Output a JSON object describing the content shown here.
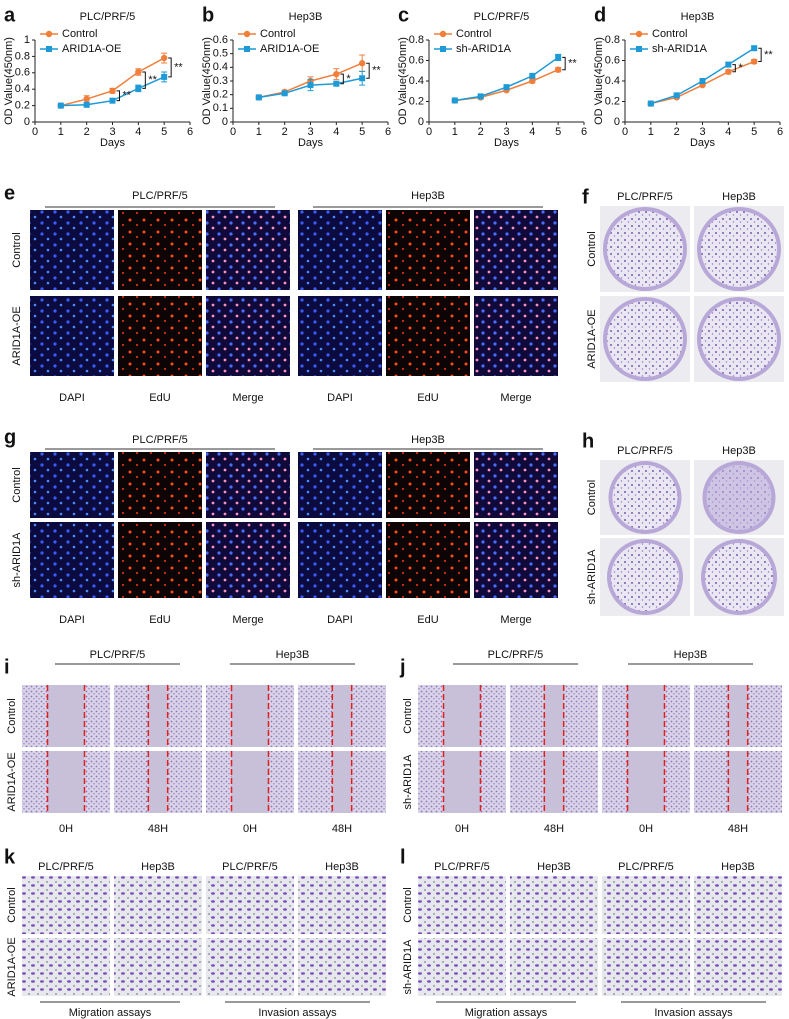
{
  "chart_data": [
    {
      "type": "line",
      "label": "a",
      "title": "PLC/PRF/5",
      "xlabel": "Days",
      "ylabel": "OD Value(450nm)",
      "x": [
        1,
        2,
        3,
        4,
        5
      ],
      "xlim": [
        0,
        6
      ],
      "xticks": [
        0,
        1,
        2,
        3,
        4,
        5,
        6
      ],
      "ylim": [
        0,
        1
      ],
      "yticks": [
        0,
        0.2,
        0.4,
        0.6,
        0.8,
        1
      ],
      "series": [
        {
          "name": "Control",
          "color": "#f07f3c",
          "values": [
            0.2,
            0.28,
            0.38,
            0.61,
            0.78
          ],
          "errors": [
            0.01,
            0.04,
            0.03,
            0.04,
            0.06
          ]
        },
        {
          "name": "ARID1A-OE",
          "color": "#1e9ad6",
          "values": [
            0.2,
            0.21,
            0.26,
            0.41,
            0.55
          ],
          "errors": [
            0.01,
            0.01,
            0.02,
            0.04,
            0.06
          ]
        }
      ],
      "significance": [
        null,
        null,
        "**",
        "**",
        "**"
      ]
    },
    {
      "type": "line",
      "label": "b",
      "title": "Hep3B",
      "xlabel": "Days",
      "ylabel": "OD Value(450nm)",
      "x": [
        1,
        2,
        3,
        4,
        5
      ],
      "xlim": [
        0,
        6
      ],
      "xticks": [
        0,
        1,
        2,
        3,
        4,
        5,
        6
      ],
      "ylim": [
        0,
        0.6
      ],
      "yticks": [
        0,
        0.1,
        0.2,
        0.3,
        0.4,
        0.5,
        0.6
      ],
      "series": [
        {
          "name": "Control",
          "color": "#f07f3c",
          "values": [
            0.18,
            0.22,
            0.3,
            0.35,
            0.43
          ],
          "errors": [
            0.01,
            0.01,
            0.03,
            0.04,
            0.06
          ]
        },
        {
          "name": "ARID1A-OE",
          "color": "#1e9ad6",
          "values": [
            0.18,
            0.21,
            0.27,
            0.28,
            0.32
          ],
          "errors": [
            0.01,
            0.01,
            0.04,
            0.01,
            0.05
          ]
        }
      ],
      "significance": [
        null,
        null,
        null,
        "*",
        "**"
      ]
    },
    {
      "type": "line",
      "label": "c",
      "title": "PLC/PRF/5",
      "xlabel": "Days",
      "ylabel": "OD Value(450nm)",
      "x": [
        1,
        2,
        3,
        4,
        5
      ],
      "xlim": [
        0,
        6
      ],
      "xticks": [
        0,
        1,
        2,
        3,
        4,
        5,
        6
      ],
      "ylim": [
        0,
        0.8
      ],
      "yticks": [
        0,
        0.2,
        0.4,
        0.6,
        0.8
      ],
      "series": [
        {
          "name": "Control",
          "color": "#f07f3c",
          "values": [
            0.21,
            0.24,
            0.31,
            0.4,
            0.51
          ],
          "errors": [
            0.01,
            0.01,
            0.01,
            0.02,
            0.02
          ]
        },
        {
          "name": "sh-ARID1A",
          "color": "#1e9ad6",
          "values": [
            0.21,
            0.25,
            0.34,
            0.45,
            0.63
          ],
          "errors": [
            0.01,
            0.01,
            0.01,
            0.02,
            0.03
          ]
        }
      ],
      "significance": [
        null,
        null,
        null,
        null,
        "**"
      ]
    },
    {
      "type": "line",
      "label": "d",
      "title": "Hep3B",
      "xlabel": "Days",
      "ylabel": "OD Value(450nm)",
      "x": [
        1,
        2,
        3,
        4,
        5
      ],
      "xlim": [
        0,
        6
      ],
      "xticks": [
        0,
        1,
        2,
        3,
        4,
        5,
        6
      ],
      "ylim": [
        0,
        0.8
      ],
      "yticks": [
        0,
        0.2,
        0.4,
        0.6,
        0.8
      ],
      "series": [
        {
          "name": "Control",
          "color": "#f07f3c",
          "values": [
            0.18,
            0.24,
            0.36,
            0.49,
            0.59
          ],
          "errors": [
            0.01,
            0.01,
            0.01,
            0.02,
            0.02
          ]
        },
        {
          "name": "sh-ARID1A",
          "color": "#1e9ad6",
          "values": [
            0.18,
            0.26,
            0.4,
            0.56,
            0.72
          ],
          "errors": [
            0.01,
            0.01,
            0.02,
            0.02,
            0.02
          ]
        }
      ],
      "significance": [
        null,
        null,
        null,
        "*",
        "**"
      ]
    }
  ],
  "panels": {
    "e": {
      "label": "e",
      "groups": [
        "PLC/PRF/5",
        "Hep3B"
      ],
      "rows": [
        "Control",
        "ARID1A-OE"
      ],
      "columns": [
        "DAPI",
        "EdU",
        "Merge",
        "DAPI",
        "EdU",
        "Merge"
      ]
    },
    "f": {
      "label": "f",
      "rows": [
        "Control",
        "ARID1A-OE"
      ],
      "columns": [
        "PLC/PRF/5",
        "Hep3B"
      ]
    },
    "g": {
      "label": "g",
      "groups": [
        "PLC/PRF/5",
        "Hep3B"
      ],
      "rows": [
        "Control",
        "sh-ARID1A"
      ],
      "columns": [
        "DAPI",
        "EdU",
        "Merge",
        "DAPI",
        "EdU",
        "Merge"
      ]
    },
    "h": {
      "label": "h",
      "rows": [
        "Control",
        "sh-ARID1A"
      ],
      "columns": [
        "PLC/PRF/5",
        "Hep3B"
      ]
    },
    "i": {
      "label": "i",
      "groups": [
        "PLC/PRF/5",
        "Hep3B"
      ],
      "rows": [
        "Control",
        "ARID1A-OE"
      ],
      "columns": [
        "0H",
        "48H",
        "0H",
        "48H"
      ]
    },
    "j": {
      "label": "j",
      "groups": [
        "PLC/PRF/5",
        "Hep3B"
      ],
      "rows": [
        "Control",
        "sh-ARID1A"
      ],
      "columns": [
        "0H",
        "48H",
        "0H",
        "48H"
      ]
    },
    "k": {
      "label": "k",
      "groups": [
        "Migration assays",
        "Invasion assays"
      ],
      "rows": [
        "Control",
        "ARID1A-OE"
      ],
      "columns": [
        "PLC/PRF/5",
        "Hep3B",
        "PLC/PRF/5",
        "Hep3B"
      ]
    },
    "l": {
      "label": "l",
      "groups": [
        "Migration assays",
        "Invasion assays"
      ],
      "rows": [
        "Control",
        "sh-ARID1A"
      ],
      "columns": [
        "PLC/PRF/5",
        "Hep3B",
        "PLC/PRF/5",
        "Hep3B"
      ]
    }
  }
}
